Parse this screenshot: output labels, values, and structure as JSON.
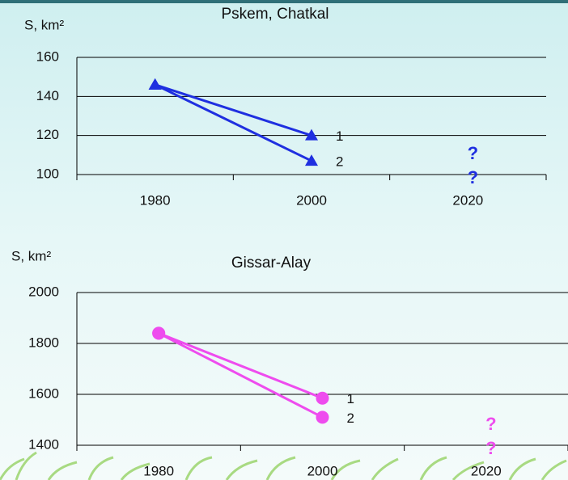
{
  "chart_data": [
    {
      "type": "line",
      "title": "Pskem, Chatkal",
      "y_label": "S, km²",
      "categories": [
        "1980",
        "2000",
        "2020"
      ],
      "series": [
        {
          "name": "1",
          "color": "#1f2fe0",
          "values": [
            146,
            120,
            null
          ]
        },
        {
          "name": "2",
          "color": "#1f2fe0",
          "values": [
            146,
            107,
            null
          ]
        }
      ],
      "marker": "triangle",
      "annotations": [
        "?",
        "?"
      ],
      "ylim": [
        100,
        160
      ],
      "yticks": [
        100,
        120,
        140,
        160
      ],
      "grid": true
    },
    {
      "type": "line",
      "title": "Gissar-Alay",
      "y_label": "S, km²",
      "categories": [
        "1980",
        "2000",
        "2020"
      ],
      "series": [
        {
          "name": "1",
          "color": "#ee4cee",
          "values": [
            1840,
            1585,
            null
          ]
        },
        {
          "name": "2",
          "color": "#ee4cee",
          "values": [
            1840,
            1510,
            null
          ]
        }
      ],
      "marker": "circle",
      "annotations": [
        "?",
        "?"
      ],
      "ylim": [
        1400,
        2000
      ],
      "yticks": [
        1400,
        1600,
        1800,
        2000
      ],
      "grid": true
    }
  ]
}
